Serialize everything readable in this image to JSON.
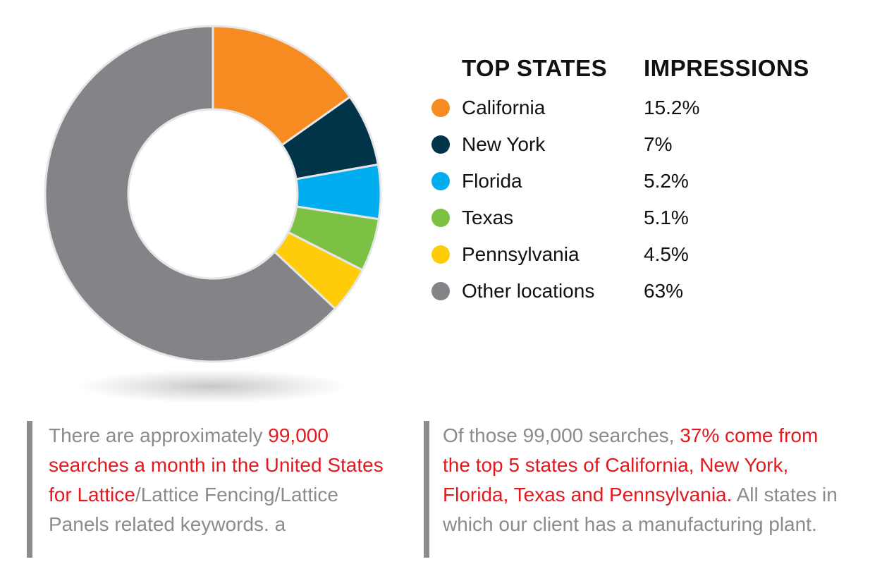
{
  "chart_data": {
    "type": "pie",
    "style": "donut",
    "header": {
      "category": "TOP STATES",
      "value": "IMPRESSIONS"
    },
    "slices": [
      {
        "label": "California",
        "value": 15.2,
        "display": "15.2%",
        "color": "#f68b22"
      },
      {
        "label": "New York",
        "value": 7,
        "display": "7%",
        "color": "#023449"
      },
      {
        "label": "Florida",
        "value": 5.2,
        "display": "5.2%",
        "color": "#00aeef"
      },
      {
        "label": "Texas",
        "value": 5.1,
        "display": "5.1%",
        "color": "#7cc143"
      },
      {
        "label": "Pennsylvania",
        "value": 4.5,
        "display": "4.5%",
        "color": "#fecc09"
      },
      {
        "label": "Other locations",
        "value": 63,
        "display": "63%",
        "color": "#848488"
      }
    ]
  },
  "notes": [
    {
      "pre": "There are approximately ",
      "highlight": "99,000 searches a month in the United States for Lattice",
      "post": "/Lattice Fencing/Lattice Panels related keywords. a"
    },
    {
      "pre": "Of those 99,000 searches, ",
      "highlight": "37% come from the top 5 states of California, New York, Florida, Texas and Pennsylvania.",
      "post": " All states in which our client has a manufacturing plant."
    }
  ],
  "colors": {
    "highlight": "#e3191f",
    "note_text": "#8a8a8f",
    "note_bar": "#8b8b90"
  }
}
